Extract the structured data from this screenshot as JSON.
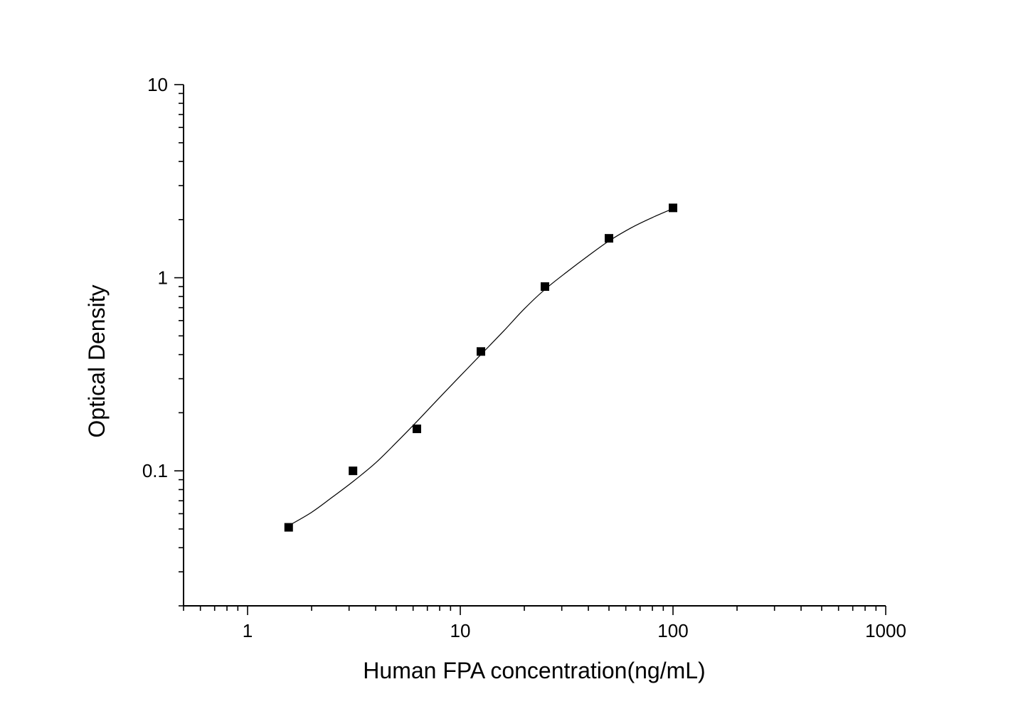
{
  "chart_data": {
    "type": "scatter",
    "title": "",
    "xlabel": "Human FPA concentration(ng/mL)",
    "ylabel": "Optical Density",
    "x_scale": "log",
    "y_scale": "log",
    "xlim": [
      0.5,
      1000
    ],
    "ylim": [
      0.02,
      10
    ],
    "x_ticks": [
      1,
      10,
      100,
      1000
    ],
    "x_tick_labels": [
      "1",
      "10",
      "100",
      "1000"
    ],
    "y_ticks": [
      0.1,
      1,
      10
    ],
    "y_tick_labels": [
      "0.1",
      "1",
      "10"
    ],
    "grid": false,
    "legend": "none",
    "series": [
      {
        "marker": "square",
        "color": "#000000",
        "x": [
          1.56,
          3.13,
          6.25,
          12.5,
          25,
          50,
          100
        ],
        "y": [
          0.051,
          0.1,
          0.165,
          0.415,
          0.9,
          1.6,
          2.3
        ]
      }
    ],
    "fit_curve": {
      "type": "line",
      "color": "#000000",
      "x": [
        1.56,
        2,
        2.5,
        3.13,
        4,
        5,
        6.25,
        8,
        10,
        12.5,
        16,
        20,
        25,
        32,
        40,
        50,
        64,
        80,
        100
      ],
      "y": [
        0.052,
        0.061,
        0.073,
        0.088,
        0.11,
        0.14,
        0.18,
        0.24,
        0.31,
        0.4,
        0.53,
        0.69,
        0.87,
        1.08,
        1.3,
        1.55,
        1.82,
        2.05,
        2.28
      ]
    }
  }
}
